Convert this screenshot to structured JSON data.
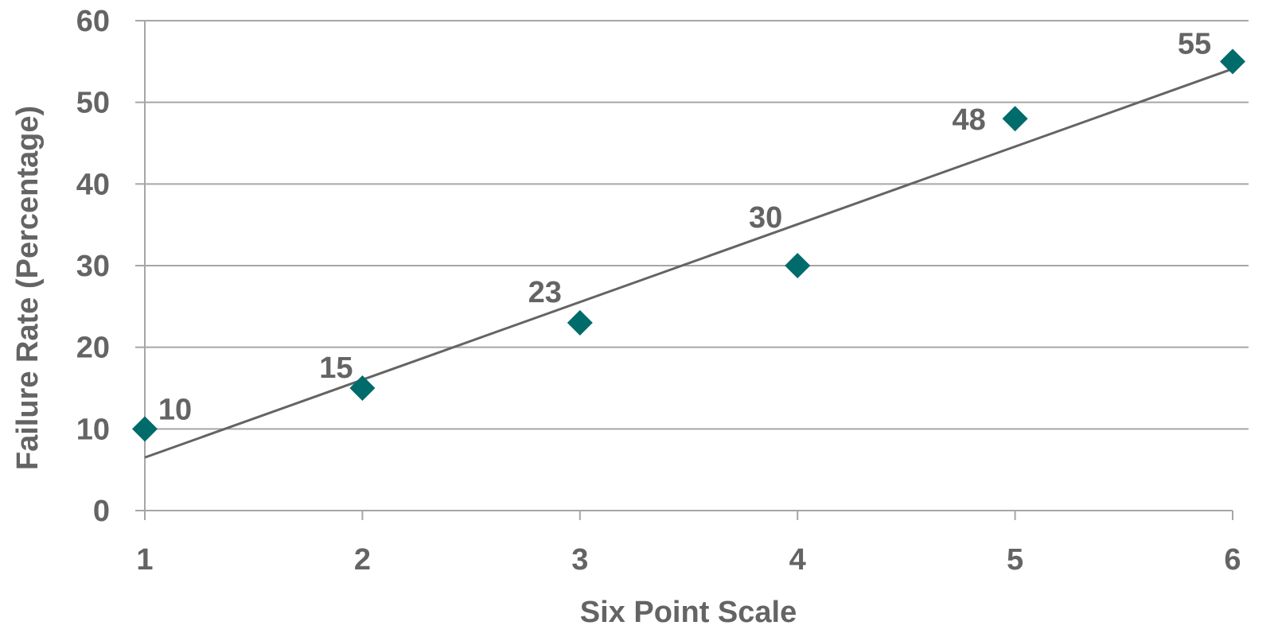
{
  "chart_data": {
    "type": "scatter",
    "title": "",
    "xlabel": "Six Point Scale",
    "ylabel": "Failure Rate (Percentage)",
    "xlim": [
      1,
      6
    ],
    "ylim": [
      0,
      60
    ],
    "x_ticks": [
      "1",
      "2",
      "3",
      "4",
      "5",
      "6"
    ],
    "y_ticks": [
      "0",
      "10",
      "20",
      "30",
      "40",
      "50",
      "60"
    ],
    "grid": true,
    "legend": "none",
    "series": [
      {
        "x": [
          1,
          2,
          3,
          4,
          5,
          6
        ],
        "y": [
          10,
          15,
          23,
          30,
          48,
          55
        ],
        "labels": [
          "10",
          "15",
          "23",
          "30",
          "48",
          "55"
        ],
        "marker": "diamond",
        "color": "#006b6b"
      }
    ],
    "trendline": {
      "type": "linear",
      "x": [
        1,
        6
      ],
      "y": [
        6.5,
        54.1
      ],
      "color": "#646464"
    }
  }
}
